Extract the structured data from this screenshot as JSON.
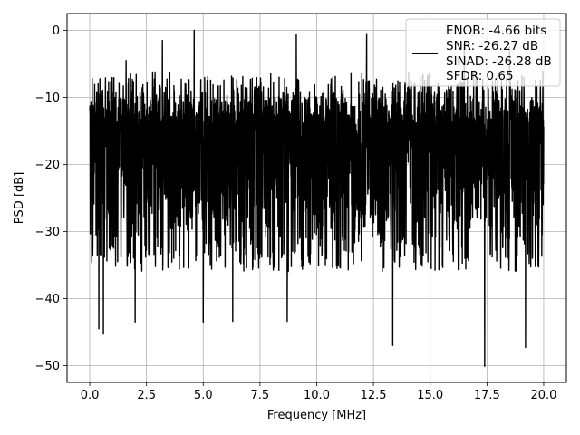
{
  "chart_data": {
    "type": "line",
    "title": "",
    "xlabel": "Frequency [MHz]",
    "ylabel": "PSD [dB]",
    "xlim": [
      -1.0,
      21.0
    ],
    "ylim": [
      -52.5,
      2.5
    ],
    "xticks": [
      0.0,
      2.5,
      5.0,
      7.5,
      10.0,
      12.5,
      15.0,
      17.5,
      20.0
    ],
    "xtick_labels": [
      "0.0",
      "2.5",
      "5.0",
      "7.5",
      "10.0",
      "12.5",
      "15.0",
      "17.5",
      "20.0"
    ],
    "yticks": [
      0,
      -10,
      -20,
      -30,
      -40,
      -50
    ],
    "ytick_labels": [
      "0",
      "−10",
      "−20",
      "−30",
      "−40",
      "−50"
    ],
    "grid": true,
    "legend_position": "top-right",
    "series": [
      {
        "color": "#000000",
        "x_range": [
          0.0,
          20.0
        ],
        "typical_band_db": [
          -30,
          -10
        ],
        "notable_peaks": [
          {
            "x": 4.6,
            "y": 0.0
          },
          {
            "x": 3.2,
            "y": -1.5
          },
          {
            "x": 9.1,
            "y": -0.6
          },
          {
            "x": 12.2,
            "y": -0.5
          },
          {
            "x": 16.5,
            "y": -2.0
          },
          {
            "x": 1.6,
            "y": -4.5
          },
          {
            "x": 18.5,
            "y": -2.5
          }
        ],
        "notable_dips": [
          {
            "x": 0.4,
            "y": -44.5
          },
          {
            "x": 0.6,
            "y": -45.3
          },
          {
            "x": 2.0,
            "y": -43.5
          },
          {
            "x": 5.0,
            "y": -43.5
          },
          {
            "x": 6.3,
            "y": -43.4
          },
          {
            "x": 8.7,
            "y": -43.4
          },
          {
            "x": 13.35,
            "y": -47.0
          },
          {
            "x": 17.4,
            "y": -50.1
          },
          {
            "x": 19.2,
            "y": -47.3
          }
        ]
      }
    ],
    "legend_lines": [
      "ENOB: -4.66 bits",
      "SNR: -26.27 dB",
      "SINAD: -26.28 dB",
      "SFDR: 0.65"
    ]
  }
}
